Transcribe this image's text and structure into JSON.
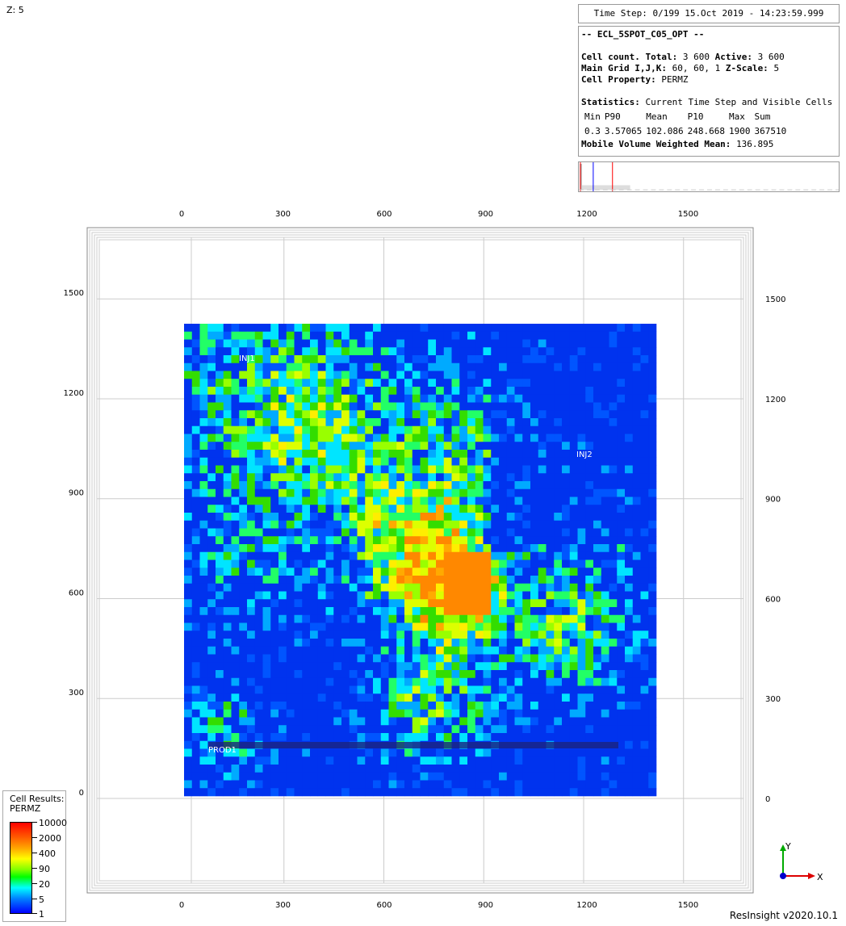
{
  "header": {
    "z_label": "Z: 5"
  },
  "timestep": {
    "text": "Time Step: 0/199 15.Oct 2019 - 14:23:59.999"
  },
  "info": {
    "case_name": "-- ECL_5SPOT_C05_OPT --",
    "cell_count_label": "Cell count. Total:",
    "cell_count_total": "3 600",
    "active_label": "Active:",
    "active_value": "3 600",
    "main_grid_label": "Main Grid I,J,K:",
    "main_grid_value": "60, 60, 1",
    "zscale_label": "Z-Scale:",
    "zscale_value": "5",
    "cell_property_label": "Cell Property:",
    "cell_property_value": "PERMZ",
    "statistics_label": "Statistics:",
    "statistics_value": "Current Time Step and Visible Cells",
    "stats_headers": [
      "Min",
      "P90",
      "Mean",
      "P10",
      "Max",
      "Sum"
    ],
    "stats_values": [
      "0.3",
      "3.57065",
      "102.086",
      "248.668",
      "1900",
      "367510"
    ],
    "mobile_label": "Mobile Volume Weighted Mean:",
    "mobile_value": "136.895"
  },
  "axes": {
    "x_ticks": [
      "0",
      "300",
      "600",
      "900",
      "1200",
      "1500"
    ],
    "y_ticks": [
      "0",
      "300",
      "600",
      "900",
      "1200",
      "1500"
    ]
  },
  "wells": {
    "inj1": "INJ1",
    "inj2": "INJ2",
    "prod1": "PROD1"
  },
  "legend": {
    "title_line1": "Cell Results:",
    "title_line2": "PERMZ",
    "labels": [
      "10000",
      "2000",
      "400",
      "90",
      "20",
      "5",
      "1"
    ]
  },
  "triad": {
    "x_label": "X",
    "y_label": "Y"
  },
  "footer": {
    "version": "ResInsight v2020.10.1"
  },
  "colors": {
    "grid_line": "#cccccc",
    "frame_line": "#999999",
    "well_pipe": "#1a237e"
  }
}
